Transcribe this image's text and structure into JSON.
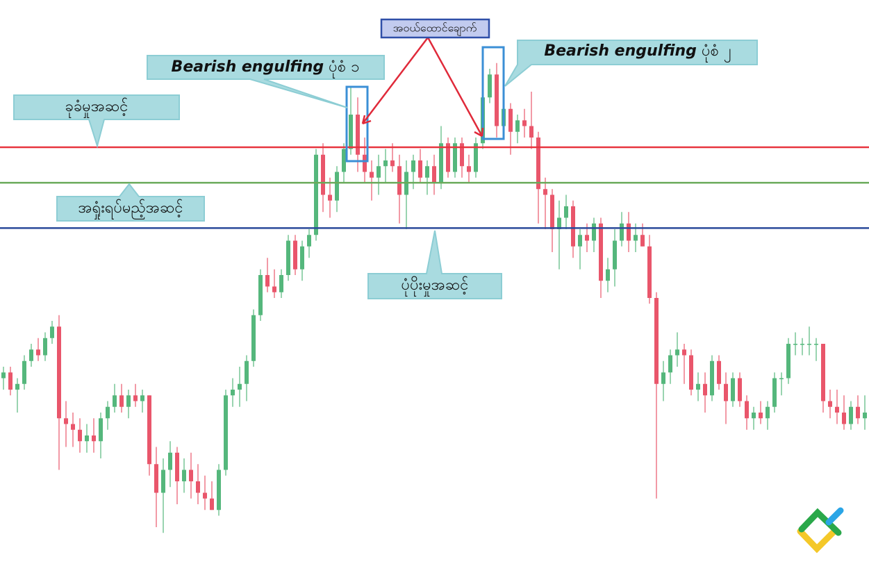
{
  "chart_data": {
    "type": "candlestick",
    "ylim": [
      0,
      100
    ],
    "up_color": "#55b77c",
    "down_color": "#e9566b",
    "ohlc": [
      [
        34,
        36,
        32,
        35
      ],
      [
        35,
        36,
        31,
        32
      ],
      [
        32,
        34,
        28,
        33
      ],
      [
        33,
        38,
        32,
        37
      ],
      [
        37,
        40,
        36,
        39
      ],
      [
        39,
        41,
        37,
        38
      ],
      [
        38,
        42,
        37,
        41
      ],
      [
        41,
        44,
        40,
        43
      ],
      [
        43,
        45,
        18,
        27
      ],
      [
        27,
        30,
        22,
        26
      ],
      [
        26,
        28,
        22,
        25
      ],
      [
        25,
        27,
        21,
        23
      ],
      [
        23,
        26,
        21,
        24
      ],
      [
        24,
        27,
        21,
        23
      ],
      [
        23,
        28,
        20,
        27
      ],
      [
        27,
        30,
        25,
        29
      ],
      [
        29,
        33,
        28,
        31
      ],
      [
        31,
        33,
        28,
        29
      ],
      [
        29,
        32,
        27,
        31
      ],
      [
        31,
        33,
        29,
        30
      ],
      [
        30,
        32,
        28,
        31
      ],
      [
        31,
        31,
        17,
        19
      ],
      [
        19,
        22,
        8,
        14
      ],
      [
        14,
        20,
        7,
        18
      ],
      [
        18,
        23,
        15,
        21
      ],
      [
        21,
        22,
        12,
        16
      ],
      [
        16,
        20,
        14,
        18
      ],
      [
        18,
        21,
        13,
        16
      ],
      [
        16,
        19,
        12,
        14
      ],
      [
        14,
        17,
        11,
        13
      ],
      [
        13,
        16,
        11,
        11
      ],
      [
        11,
        19,
        10,
        18
      ],
      [
        18,
        32,
        17,
        31
      ],
      [
        31,
        34,
        29,
        32
      ],
      [
        32,
        36,
        29,
        33
      ],
      [
        33,
        38,
        30,
        37
      ],
      [
        37,
        46,
        36,
        45
      ],
      [
        45,
        53,
        44,
        52
      ],
      [
        52,
        55,
        49,
        50
      ],
      [
        50,
        53,
        48,
        49
      ],
      [
        49,
        53,
        48,
        52
      ],
      [
        52,
        59,
        51,
        58
      ],
      [
        58,
        59,
        52,
        53
      ],
      [
        53,
        58,
        51,
        57
      ],
      [
        57,
        60,
        55,
        59
      ],
      [
        59,
        74,
        58,
        73
      ],
      [
        73,
        75,
        63,
        66
      ],
      [
        66,
        69,
        62,
        65
      ],
      [
        65,
        71,
        63,
        70
      ],
      [
        70,
        75,
        68,
        74
      ],
      [
        74,
        85,
        73,
        80
      ],
      [
        80,
        83,
        70,
        73
      ],
      [
        73,
        76,
        68,
        70
      ],
      [
        70,
        72,
        65,
        69
      ],
      [
        69,
        73,
        66,
        71
      ],
      [
        71,
        74,
        68,
        72
      ],
      [
        72,
        75,
        70,
        71
      ],
      [
        71,
        73,
        61,
        66
      ],
      [
        66,
        72,
        60,
        70
      ],
      [
        70,
        73,
        67,
        72
      ],
      [
        72,
        74,
        68,
        69
      ],
      [
        69,
        72,
        66,
        71
      ],
      [
        71,
        73,
        66,
        68
      ],
      [
        68,
        78,
        67,
        75
      ],
      [
        75,
        76,
        69,
        70
      ],
      [
        70,
        76,
        69,
        75
      ],
      [
        75,
        76,
        69,
        71
      ],
      [
        71,
        73,
        68,
        70
      ],
      [
        70,
        76,
        69,
        75
      ],
      [
        75,
        84,
        74,
        83
      ],
      [
        83,
        88,
        82,
        87
      ],
      [
        87,
        89,
        76,
        78
      ],
      [
        78,
        82,
        76,
        81
      ],
      [
        81,
        82,
        73,
        77
      ],
      [
        77,
        80,
        75,
        79
      ],
      [
        79,
        81,
        76,
        78
      ],
      [
        78,
        84,
        74,
        76
      ],
      [
        76,
        77,
        61,
        67
      ],
      [
        67,
        69,
        60,
        66
      ],
      [
        66,
        67,
        56,
        60
      ],
      [
        60,
        65,
        53,
        62
      ],
      [
        62,
        66,
        60,
        64
      ],
      [
        64,
        65,
        55,
        57
      ],
      [
        57,
        60,
        53,
        59
      ],
      [
        59,
        61,
        56,
        58
      ],
      [
        58,
        62,
        56,
        61
      ],
      [
        61,
        62,
        48,
        51
      ],
      [
        51,
        55,
        49,
        53
      ],
      [
        53,
        60,
        50,
        58
      ],
      [
        58,
        63,
        57,
        61
      ],
      [
        61,
        63,
        56,
        58
      ],
      [
        58,
        61,
        56,
        59
      ],
      [
        59,
        61,
        57,
        57
      ],
      [
        57,
        59,
        47,
        48
      ],
      [
        48,
        49,
        13,
        33
      ],
      [
        33,
        37,
        30,
        35
      ],
      [
        35,
        39,
        33,
        38
      ],
      [
        38,
        42,
        36,
        39
      ],
      [
        39,
        40,
        33,
        38
      ],
      [
        38,
        39,
        31,
        32
      ],
      [
        32,
        35,
        30,
        33
      ],
      [
        33,
        35,
        28,
        31
      ],
      [
        31,
        38,
        30,
        37
      ],
      [
        37,
        38,
        32,
        33
      ],
      [
        33,
        35,
        26,
        30
      ],
      [
        30,
        35,
        29,
        34
      ],
      [
        34,
        35,
        29,
        30
      ],
      [
        30,
        31,
        25,
        27
      ],
      [
        27,
        29,
        25,
        28
      ],
      [
        28,
        30,
        26,
        27
      ],
      [
        27,
        30,
        25,
        29
      ],
      [
        29,
        35,
        28,
        34
      ],
      [
        34,
        35,
        31,
        34
      ],
      [
        34,
        41,
        33,
        40
      ],
      [
        40,
        42,
        38,
        40
      ],
      [
        40,
        41,
        38,
        40
      ],
      [
        40,
        43,
        38,
        40
      ],
      [
        40,
        41,
        37,
        40
      ],
      [
        40,
        40,
        28,
        30
      ],
      [
        30,
        32,
        27,
        29
      ],
      [
        29,
        32,
        26,
        28
      ],
      [
        28,
        31,
        25,
        26
      ],
      [
        26,
        30,
        25,
        29
      ],
      [
        29,
        31,
        26,
        27
      ],
      [
        27,
        31,
        25,
        28
      ]
    ],
    "levels": [
      {
        "value": 74.3,
        "color": "#e8343f"
      },
      {
        "value": 68.1,
        "color": "#6aaa5a"
      },
      {
        "value": 60.2,
        "color": "#2a4a9a"
      }
    ],
    "annotations": [
      "ခုခံမှုအဆင့်",
      "အရှုံးရပ်မည့်အဆင့်",
      "ပုံပိုးမှုအဆင့်"
    ],
    "patterns": [
      {
        "name": "Bearish engulfing",
        "label": "ပုံစံ ၁"
      },
      {
        "name": "Bearish engulfing",
        "label": "ပုံစံ ၂"
      }
    ],
    "trap": "အဝယ်ထောင်ချောက်"
  }
}
